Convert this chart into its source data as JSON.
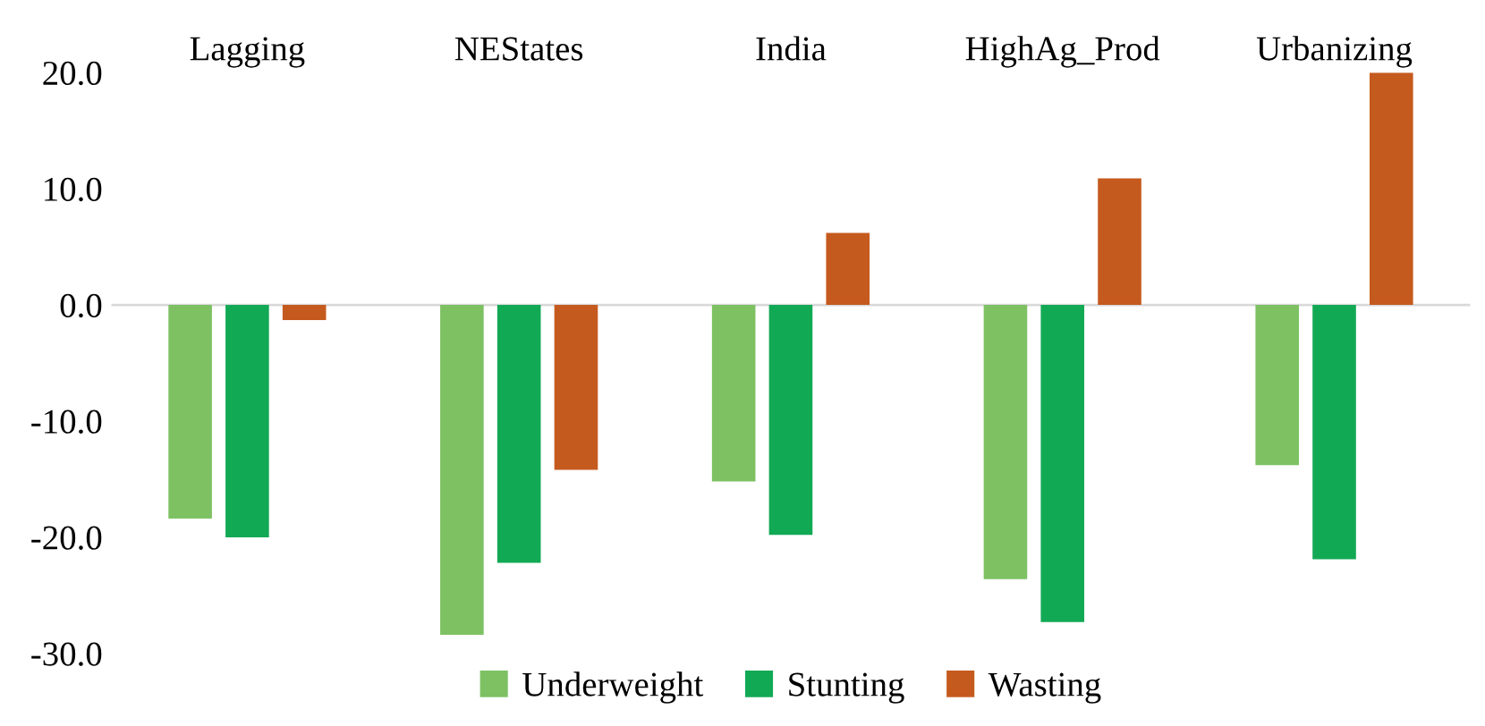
{
  "chart_data": {
    "type": "bar",
    "categories": [
      "Lagging",
      "NEStates",
      "India",
      "HighAg_Prod",
      "Urbanizing"
    ],
    "series": [
      {
        "name": "Underweight",
        "color": "#7dc163",
        "values": [
          -18.4,
          -28.4,
          -15.2,
          -23.6,
          -13.8
        ]
      },
      {
        "name": "Stunting",
        "color": "#12a955",
        "values": [
          -20.0,
          -22.2,
          -19.8,
          -27.3,
          -21.9
        ]
      },
      {
        "name": "Wasting",
        "color": "#c55a1f",
        "values": [
          -1.3,
          -14.2,
          6.2,
          10.9,
          20.0
        ]
      }
    ],
    "ylim": [
      -30,
      20
    ],
    "yticks": [
      {
        "value": -30,
        "label": "-30.0"
      },
      {
        "value": -20,
        "label": "-20.0"
      },
      {
        "value": -10,
        "label": "-10.0"
      },
      {
        "value": 0,
        "label": "0.0"
      },
      {
        "value": 10,
        "label": "10.0"
      },
      {
        "value": 20,
        "label": "20.0"
      }
    ],
    "grid": false,
    "ref_lines": [
      {
        "axis": "y",
        "value": 0,
        "color": "#d9d9d9"
      }
    ],
    "legend": "bottom"
  }
}
